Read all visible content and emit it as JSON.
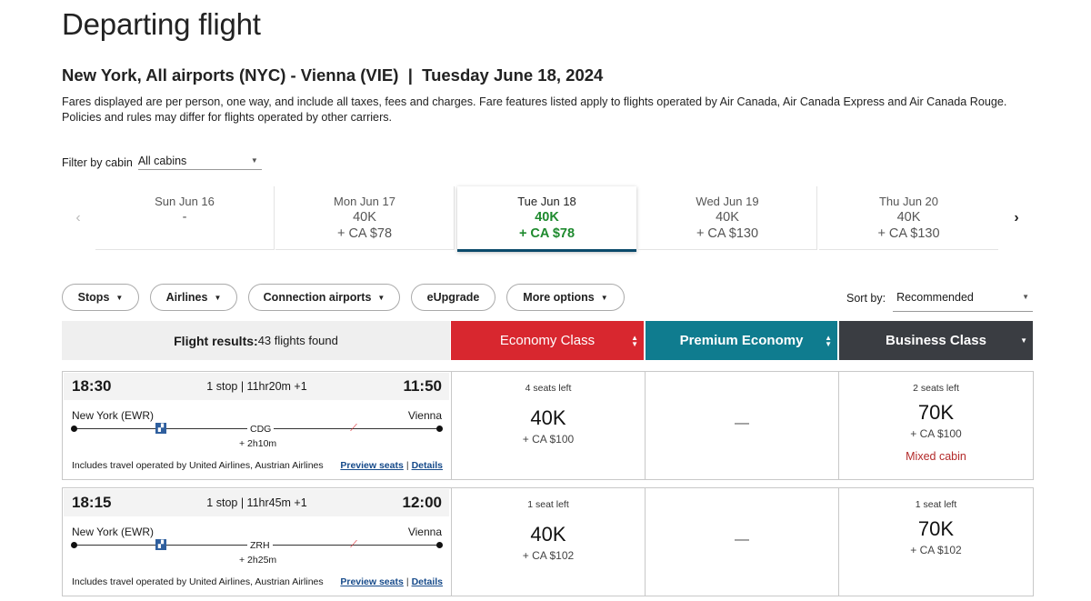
{
  "page_title": "Departing flight",
  "route": "New York, All airports (NYC) - Vienna (VIE)  |  Tuesday June 18, 2024",
  "fare_note": "Fares displayed are per person, one way, and include all taxes, fees and charges. Fare features listed apply to flights operated by Air Canada, Air Canada Express and Air Canada Rouge. Policies and rules may differ for flights operated by other carriers.",
  "cabin_filter": {
    "label": "Filter by cabin",
    "value": "All cabins"
  },
  "dates": [
    {
      "day": "Sun Jun 16",
      "points": "-",
      "cash": ""
    },
    {
      "day": "Mon Jun 17",
      "points": "40K",
      "cash": "+ CA $78"
    },
    {
      "day": "Tue Jun 18",
      "points": "40K",
      "cash": "+ CA $78",
      "selected": true
    },
    {
      "day": "Wed Jun 19",
      "points": "40K",
      "cash": "+ CA $130"
    },
    {
      "day": "Thu Jun 20",
      "points": "40K",
      "cash": "+ CA $130"
    }
  ],
  "filters": [
    "Stops",
    "Airlines",
    "Connection airports",
    "eUpgrade",
    "More options"
  ],
  "sort": {
    "label": "Sort by:",
    "value": "Recommended"
  },
  "results": {
    "label": "Flight results:",
    "count": "43 flights found"
  },
  "cabins": {
    "economy": "Economy Class",
    "premium": "Premium Economy",
    "business": "Business Class"
  },
  "colors": {
    "economy": "#d8272f",
    "premium": "#0f7c8f",
    "business": "#3a3d42",
    "selected_price": "#1e8a2e",
    "link": "#164a8a",
    "mixed_cabin": "#b32a2a"
  },
  "flights": [
    {
      "depart": "18:30",
      "arrive": "11:50",
      "stops": "1 stop | 11hr20m +1",
      "origin": "New York (EWR)",
      "destination": "Vienna",
      "via": "CDG",
      "layover": "+ 2h10m",
      "operated": "Includes travel operated by United Airlines, Austrian Airlines",
      "preview": "Preview seats",
      "details": "Details",
      "economy": {
        "seats": "4 seats left",
        "points": "40K",
        "cash": "+ CA $100"
      },
      "premium": "—",
      "business": {
        "seats": "2 seats left",
        "points": "70K",
        "cash": "+ CA $100",
        "note": "Mixed cabin"
      }
    },
    {
      "depart": "18:15",
      "arrive": "12:00",
      "stops": "1 stop | 11hr45m +1",
      "origin": "New York (EWR)",
      "destination": "Vienna",
      "via": "ZRH",
      "layover": "+ 2h25m",
      "operated": "Includes travel operated by United Airlines, Austrian Airlines",
      "preview": "Preview seats",
      "details": "Details",
      "economy": {
        "seats": "1 seat left",
        "points": "40K",
        "cash": "+ CA $102"
      },
      "premium": "—",
      "business": {
        "seats": "1 seat left",
        "points": "70K",
        "cash": "+ CA $102"
      }
    }
  ]
}
